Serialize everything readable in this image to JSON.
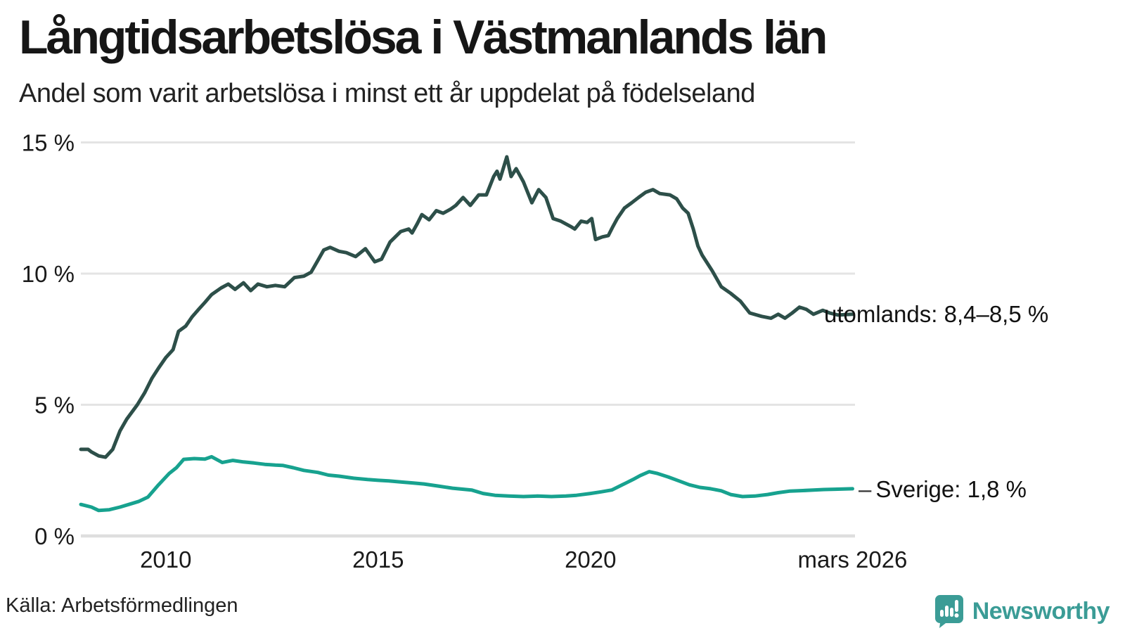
{
  "header": {
    "title": "Långtidsarbetslösa i Västmanlands län",
    "subtitle": "Andel som varit arbetslösa i minst ett år uppdelat på födelseland"
  },
  "footer": {
    "source": "Källa: Arbetsförmedlingen",
    "logo_text": "Newsworthy",
    "logo_color": "#3b9c96"
  },
  "colors": {
    "utomlands_line": "#2d4f49",
    "sverige_line": "#17a28f",
    "grid": "#e4e4e4",
    "baseline": "#dedede"
  },
  "labels": {
    "utomlands_end_label": "utomlands: 8,4–8,5 %",
    "sverige_end_label": "Sverige: 1,8 %",
    "sverige_label_dash": "–"
  },
  "chart_data": {
    "type": "line",
    "title": "Långtidsarbetslösa i Västmanlands län",
    "subtitle": "Andel som varit arbetslösa i minst ett år uppdelat på födelseland",
    "x_unit": "decimal_year",
    "x_range": [
      2008.0,
      2026.25
    ],
    "ylim": [
      0,
      15
    ],
    "grid": "horizontal",
    "legend_position": "end-of-line-labels",
    "y_ticks": [
      {
        "value": 15,
        "label": "15 %"
      },
      {
        "value": 10,
        "label": "10 %"
      },
      {
        "value": 5,
        "label": "5 %"
      },
      {
        "value": 0,
        "label": "0 %"
      }
    ],
    "x_ticks": [
      {
        "value": 2010,
        "label": "2010"
      },
      {
        "value": 2015,
        "label": "2015"
      },
      {
        "value": 2020,
        "label": "2020"
      },
      {
        "value": 2026.17,
        "label": "mars 2026"
      }
    ],
    "series": [
      {
        "name": "utomlands",
        "end_label": "utomlands: 8,4–8,5 %",
        "color": "#2d4f49",
        "points": [
          [
            2008.0,
            3.3
          ],
          [
            2008.17,
            3.3
          ],
          [
            2008.25,
            3.2
          ],
          [
            2008.42,
            3.05
          ],
          [
            2008.58,
            3.0
          ],
          [
            2008.75,
            3.3
          ],
          [
            2008.92,
            4.0
          ],
          [
            2009.08,
            4.45
          ],
          [
            2009.33,
            5.0
          ],
          [
            2009.5,
            5.45
          ],
          [
            2009.67,
            6.0
          ],
          [
            2009.83,
            6.4
          ],
          [
            2010.0,
            6.8
          ],
          [
            2010.17,
            7.1
          ],
          [
            2010.3,
            7.8
          ],
          [
            2010.47,
            8.0
          ],
          [
            2010.62,
            8.35
          ],
          [
            2010.78,
            8.65
          ],
          [
            2010.92,
            8.9
          ],
          [
            2011.08,
            9.2
          ],
          [
            2011.3,
            9.45
          ],
          [
            2011.47,
            9.6
          ],
          [
            2011.63,
            9.4
          ],
          [
            2011.83,
            9.65
          ],
          [
            2012.0,
            9.35
          ],
          [
            2012.17,
            9.6
          ],
          [
            2012.38,
            9.5
          ],
          [
            2012.58,
            9.55
          ],
          [
            2012.8,
            9.5
          ],
          [
            2013.03,
            9.85
          ],
          [
            2013.25,
            9.9
          ],
          [
            2013.42,
            10.05
          ],
          [
            2013.58,
            10.5
          ],
          [
            2013.72,
            10.9
          ],
          [
            2013.87,
            11.0
          ],
          [
            2014.08,
            10.85
          ],
          [
            2014.25,
            10.8
          ],
          [
            2014.47,
            10.65
          ],
          [
            2014.7,
            10.95
          ],
          [
            2014.92,
            10.45
          ],
          [
            2015.08,
            10.55
          ],
          [
            2015.28,
            11.2
          ],
          [
            2015.53,
            11.6
          ],
          [
            2015.72,
            11.7
          ],
          [
            2015.8,
            11.55
          ],
          [
            2015.92,
            11.9
          ],
          [
            2016.03,
            12.25
          ],
          [
            2016.2,
            12.05
          ],
          [
            2016.37,
            12.4
          ],
          [
            2016.53,
            12.3
          ],
          [
            2016.7,
            12.45
          ],
          [
            2016.83,
            12.6
          ],
          [
            2017.0,
            12.9
          ],
          [
            2017.17,
            12.6
          ],
          [
            2017.37,
            13.0
          ],
          [
            2017.55,
            13.0
          ],
          [
            2017.72,
            13.7
          ],
          [
            2017.8,
            13.9
          ],
          [
            2017.87,
            13.6
          ],
          [
            2018.03,
            14.45
          ],
          [
            2018.13,
            13.7
          ],
          [
            2018.25,
            14.0
          ],
          [
            2018.42,
            13.5
          ],
          [
            2018.62,
            12.7
          ],
          [
            2018.78,
            13.2
          ],
          [
            2018.95,
            12.9
          ],
          [
            2019.12,
            12.1
          ],
          [
            2019.3,
            12.0
          ],
          [
            2019.53,
            11.8
          ],
          [
            2019.63,
            11.7
          ],
          [
            2019.78,
            12.0
          ],
          [
            2019.92,
            11.95
          ],
          [
            2020.03,
            12.1
          ],
          [
            2020.12,
            11.3
          ],
          [
            2020.28,
            11.4
          ],
          [
            2020.42,
            11.45
          ],
          [
            2020.53,
            11.8
          ],
          [
            2020.63,
            12.1
          ],
          [
            2020.8,
            12.5
          ],
          [
            2020.97,
            12.7
          ],
          [
            2021.13,
            12.9
          ],
          [
            2021.3,
            13.1
          ],
          [
            2021.47,
            13.2
          ],
          [
            2021.63,
            13.05
          ],
          [
            2021.87,
            13.0
          ],
          [
            2022.03,
            12.85
          ],
          [
            2022.17,
            12.5
          ],
          [
            2022.3,
            12.3
          ],
          [
            2022.42,
            11.7
          ],
          [
            2022.53,
            11.05
          ],
          [
            2022.63,
            10.7
          ],
          [
            2022.87,
            10.1
          ],
          [
            2023.08,
            9.5
          ],
          [
            2023.3,
            9.25
          ],
          [
            2023.53,
            8.95
          ],
          [
            2023.75,
            8.5
          ],
          [
            2024.03,
            8.37
          ],
          [
            2024.25,
            8.3
          ],
          [
            2024.42,
            8.45
          ],
          [
            2024.58,
            8.3
          ],
          [
            2024.75,
            8.5
          ],
          [
            2024.92,
            8.72
          ],
          [
            2025.08,
            8.64
          ],
          [
            2025.25,
            8.45
          ],
          [
            2025.47,
            8.6
          ],
          [
            2025.63,
            8.5
          ],
          [
            2025.83,
            8.42
          ],
          [
            2026.17,
            8.45
          ]
        ]
      },
      {
        "name": "Sverige",
        "end_label": "Sverige: 1,8 %",
        "color": "#17a28f",
        "points": [
          [
            2008.0,
            1.2
          ],
          [
            2008.25,
            1.1
          ],
          [
            2008.42,
            0.97
          ],
          [
            2008.67,
            1.0
          ],
          [
            2008.92,
            1.1
          ],
          [
            2009.13,
            1.2
          ],
          [
            2009.37,
            1.32
          ],
          [
            2009.58,
            1.48
          ],
          [
            2009.83,
            1.95
          ],
          [
            2010.08,
            2.38
          ],
          [
            2010.25,
            2.6
          ],
          [
            2010.42,
            2.92
          ],
          [
            2010.67,
            2.95
          ],
          [
            2010.92,
            2.93
          ],
          [
            2011.08,
            3.02
          ],
          [
            2011.33,
            2.8
          ],
          [
            2011.58,
            2.88
          ],
          [
            2011.83,
            2.82
          ],
          [
            2012.08,
            2.78
          ],
          [
            2012.33,
            2.73
          ],
          [
            2012.58,
            2.7
          ],
          [
            2012.75,
            2.69
          ],
          [
            2013.0,
            2.6
          ],
          [
            2013.25,
            2.5
          ],
          [
            2013.58,
            2.42
          ],
          [
            2013.83,
            2.32
          ],
          [
            2014.08,
            2.28
          ],
          [
            2014.42,
            2.2
          ],
          [
            2014.75,
            2.15
          ],
          [
            2015.0,
            2.12
          ],
          [
            2015.25,
            2.1
          ],
          [
            2015.58,
            2.05
          ],
          [
            2015.83,
            2.02
          ],
          [
            2016.08,
            1.98
          ],
          [
            2016.42,
            1.9
          ],
          [
            2016.75,
            1.82
          ],
          [
            2017.2,
            1.75
          ],
          [
            2017.47,
            1.62
          ],
          [
            2017.75,
            1.55
          ],
          [
            2018.08,
            1.52
          ],
          [
            2018.42,
            1.5
          ],
          [
            2018.75,
            1.52
          ],
          [
            2019.08,
            1.5
          ],
          [
            2019.42,
            1.52
          ],
          [
            2019.67,
            1.55
          ],
          [
            2020.0,
            1.62
          ],
          [
            2020.25,
            1.68
          ],
          [
            2020.5,
            1.75
          ],
          [
            2020.75,
            1.95
          ],
          [
            2021.0,
            2.15
          ],
          [
            2021.17,
            2.3
          ],
          [
            2021.38,
            2.45
          ],
          [
            2021.58,
            2.38
          ],
          [
            2021.83,
            2.25
          ],
          [
            2022.08,
            2.1
          ],
          [
            2022.33,
            1.95
          ],
          [
            2022.58,
            1.85
          ],
          [
            2022.83,
            1.8
          ],
          [
            2023.08,
            1.72
          ],
          [
            2023.3,
            1.58
          ],
          [
            2023.58,
            1.5
          ],
          [
            2023.87,
            1.52
          ],
          [
            2024.17,
            1.58
          ],
          [
            2024.42,
            1.65
          ],
          [
            2024.7,
            1.71
          ],
          [
            2025.0,
            1.73
          ],
          [
            2025.25,
            1.75
          ],
          [
            2025.5,
            1.77
          ],
          [
            2025.75,
            1.78
          ],
          [
            2026.17,
            1.8
          ]
        ]
      }
    ]
  }
}
